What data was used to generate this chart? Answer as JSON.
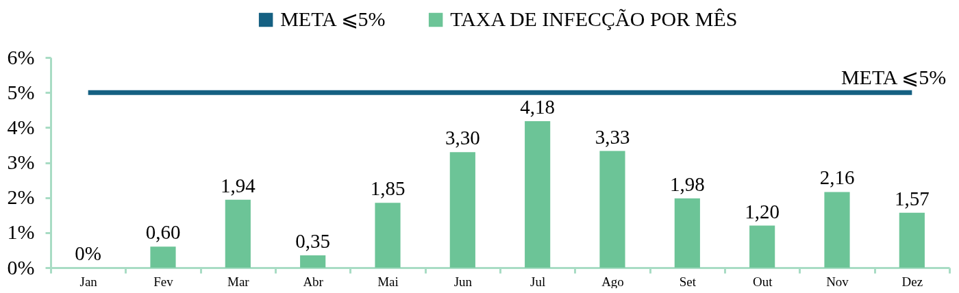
{
  "chart_data": {
    "type": "bar",
    "categories": [
      "Jan",
      "Fev",
      "Mar",
      "Abr",
      "Mai",
      "Jun",
      "Jul",
      "Ago",
      "Set",
      "Out",
      "Nov",
      "Dez"
    ],
    "series": [
      {
        "name": "META ⩽5%",
        "type": "line",
        "color": "#156082",
        "values": [
          5,
          5,
          5,
          5,
          5,
          5,
          5,
          5,
          5,
          5,
          5,
          5
        ]
      },
      {
        "name": "TAXA DE INFECÇÃO POR MÊS",
        "color": "#6cc497",
        "values": [
          0,
          0.6,
          1.94,
          0.35,
          1.85,
          3.3,
          4.18,
          3.33,
          1.98,
          1.2,
          2.16,
          1.57
        ],
        "value_labels": [
          "0%",
          "0,60",
          "1,94",
          "0,35",
          "1,85",
          "3,30",
          "4,18",
          "3,33",
          "1,98",
          "1,20",
          "2,16",
          "1,57"
        ]
      }
    ],
    "ylim": [
      0,
      6
    ],
    "yticks": [
      {
        "value": 0,
        "label": "0%"
      },
      {
        "value": 1,
        "label": "1%"
      },
      {
        "value": 2,
        "label": "2%"
      },
      {
        "value": 3,
        "label": "3%"
      },
      {
        "value": 4,
        "label": "4%"
      },
      {
        "value": 5,
        "label": "5%"
      },
      {
        "value": 6,
        "label": "6%"
      }
    ],
    "legend": "top"
  }
}
